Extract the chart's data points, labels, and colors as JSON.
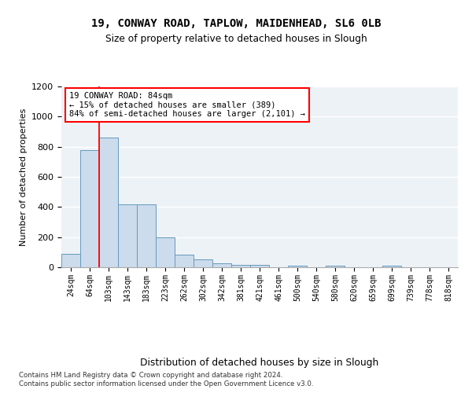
{
  "title1": "19, CONWAY ROAD, TAPLOW, MAIDENHEAD, SL6 0LB",
  "title2": "Size of property relative to detached houses in Slough",
  "xlabel": "Distribution of detached houses by size in Slough",
  "ylabel": "Number of detached properties",
  "categories": [
    "24sqm",
    "64sqm",
    "103sqm",
    "143sqm",
    "183sqm",
    "223sqm",
    "262sqm",
    "302sqm",
    "342sqm",
    "381sqm",
    "421sqm",
    "461sqm",
    "500sqm",
    "540sqm",
    "580sqm",
    "620sqm",
    "659sqm",
    "699sqm",
    "739sqm",
    "778sqm",
    "818sqm"
  ],
  "values": [
    90,
    780,
    860,
    415,
    415,
    200,
    85,
    50,
    25,
    15,
    15,
    0,
    10,
    0,
    10,
    0,
    0,
    10,
    0,
    0,
    0
  ],
  "bar_color": "#ccdcec",
  "bar_edge_color": "#6699bb",
  "annotation_text": "19 CONWAY ROAD: 84sqm\n← 15% of detached houses are smaller (389)\n84% of semi-detached houses are larger (2,101) →",
  "red_line_x": 1.5,
  "ylim": [
    0,
    1200
  ],
  "yticks": [
    0,
    200,
    400,
    600,
    800,
    1000,
    1200
  ],
  "footer1": "Contains HM Land Registry data © Crown copyright and database right 2024.",
  "footer2": "Contains public sector information licensed under the Open Government Licence v3.0.",
  "background_color": "#edf2f7",
  "grid_color": "#ffffff"
}
